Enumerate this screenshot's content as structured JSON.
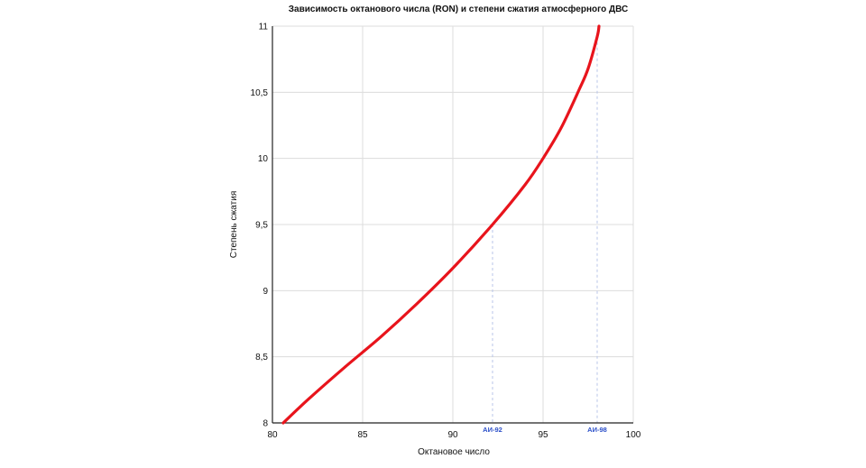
{
  "chart_data": {
    "type": "line",
    "title": "Зависимость октанового числа (RON) и степени сжатия атмосферного ДВС",
    "xlabel": "Октановое число",
    "ylabel": "Степень сжатия",
    "xlim": [
      80,
      100
    ],
    "ylim": [
      8,
      11
    ],
    "x_ticks": [
      80,
      85,
      90,
      95,
      100
    ],
    "x_tick_labels": [
      "80",
      "85",
      "90",
      "95",
      "100"
    ],
    "y_ticks": [
      8,
      8.5,
      9,
      9.5,
      10,
      10.5,
      11
    ],
    "y_tick_labels": [
      "8",
      "8,5",
      "9",
      "9,5",
      "10",
      "10,5",
      "11"
    ],
    "grid": true,
    "legend": "none",
    "series": [
      {
        "color": "#e8141c",
        "x": [
          80.6,
          82,
          84,
          86,
          88,
          90,
          92.2,
          94,
          95,
          96,
          97,
          97.5,
          98,
          98.1
        ],
        "y": [
          8.0,
          8.18,
          8.42,
          8.65,
          8.9,
          9.17,
          9.5,
          9.8,
          10.0,
          10.23,
          10.52,
          10.68,
          10.92,
          11.0
        ]
      }
    ],
    "markers": [
      {
        "x": 92.2,
        "label": "АИ-92",
        "color": "#2b4fc9"
      },
      {
        "x": 98.0,
        "label": "АИ-98",
        "color": "#2b4fc9"
      }
    ]
  }
}
